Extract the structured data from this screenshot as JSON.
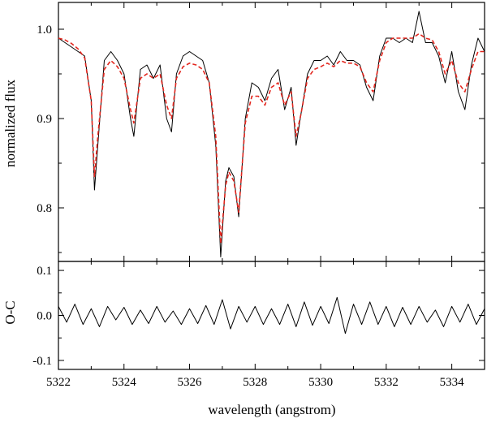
{
  "chart_data": [
    {
      "type": "line",
      "panel": "top",
      "xlabel": "",
      "ylabel": "normalized flux",
      "xlim": [
        5322,
        5335
      ],
      "ylim": [
        0.74,
        1.03
      ],
      "yticks": [
        0.8,
        0.9,
        1.0
      ],
      "ytick_labels": [
        "0.8",
        "0.9",
        "1.0"
      ],
      "xticks": [
        5322,
        5324,
        5326,
        5328,
        5330,
        5332,
        5334
      ],
      "grid": false,
      "series": [
        {
          "color": "#000000",
          "style": "solid",
          "role": "observed",
          "x": [
            5322.0,
            5322.2,
            5322.4,
            5322.6,
            5322.8,
            5323.0,
            5323.1,
            5323.2,
            5323.4,
            5323.6,
            5323.8,
            5324.0,
            5324.2,
            5324.3,
            5324.5,
            5324.7,
            5324.9,
            5325.1,
            5325.3,
            5325.45,
            5325.6,
            5325.8,
            5326.0,
            5326.2,
            5326.4,
            5326.6,
            5326.8,
            5326.95,
            5327.1,
            5327.2,
            5327.35,
            5327.5,
            5327.7,
            5327.9,
            5328.1,
            5328.3,
            5328.5,
            5328.7,
            5328.9,
            5329.1,
            5329.25,
            5329.4,
            5329.6,
            5329.8,
            5330.0,
            5330.2,
            5330.4,
            5330.6,
            5330.8,
            5331.0,
            5331.2,
            5331.4,
            5331.6,
            5331.8,
            5332.0,
            5332.2,
            5332.4,
            5332.6,
            5332.8,
            5333.0,
            5333.2,
            5333.4,
            5333.6,
            5333.8,
            5334.0,
            5334.2,
            5334.4,
            5334.6,
            5334.8,
            5335.0
          ],
          "y": [
            0.99,
            0.985,
            0.98,
            0.975,
            0.97,
            0.92,
            0.82,
            0.87,
            0.965,
            0.975,
            0.965,
            0.95,
            0.9,
            0.88,
            0.955,
            0.96,
            0.945,
            0.96,
            0.9,
            0.885,
            0.95,
            0.97,
            0.975,
            0.97,
            0.965,
            0.94,
            0.87,
            0.745,
            0.83,
            0.845,
            0.835,
            0.79,
            0.9,
            0.94,
            0.935,
            0.92,
            0.945,
            0.955,
            0.91,
            0.935,
            0.87,
            0.905,
            0.95,
            0.965,
            0.965,
            0.97,
            0.96,
            0.975,
            0.965,
            0.965,
            0.96,
            0.935,
            0.92,
            0.97,
            0.99,
            0.99,
            0.985,
            0.99,
            0.985,
            1.02,
            0.985,
            0.985,
            0.97,
            0.94,
            0.975,
            0.93,
            0.91,
            0.96,
            0.99,
            0.975
          ]
        },
        {
          "color": "#e3261e",
          "style": "dashed",
          "role": "model",
          "x": [
            5322.0,
            5322.2,
            5322.4,
            5322.6,
            5322.8,
            5323.0,
            5323.1,
            5323.2,
            5323.4,
            5323.6,
            5323.8,
            5324.0,
            5324.2,
            5324.3,
            5324.5,
            5324.7,
            5324.9,
            5325.1,
            5325.3,
            5325.45,
            5325.6,
            5325.8,
            5326.0,
            5326.2,
            5326.4,
            5326.6,
            5326.8,
            5326.95,
            5327.1,
            5327.2,
            5327.35,
            5327.5,
            5327.7,
            5327.9,
            5328.1,
            5328.3,
            5328.5,
            5328.7,
            5328.9,
            5329.1,
            5329.25,
            5329.4,
            5329.6,
            5329.8,
            5330.0,
            5330.2,
            5330.4,
            5330.6,
            5330.8,
            5331.0,
            5331.2,
            5331.4,
            5331.6,
            5331.8,
            5332.0,
            5332.2,
            5332.4,
            5332.6,
            5332.8,
            5333.0,
            5333.2,
            5333.4,
            5333.6,
            5333.8,
            5334.0,
            5334.2,
            5334.4,
            5334.6,
            5334.8,
            5335.0
          ],
          "y": [
            0.99,
            0.988,
            0.984,
            0.978,
            0.968,
            0.92,
            0.835,
            0.88,
            0.955,
            0.965,
            0.958,
            0.945,
            0.91,
            0.895,
            0.945,
            0.95,
            0.945,
            0.95,
            0.915,
            0.9,
            0.945,
            0.958,
            0.962,
            0.96,
            0.955,
            0.94,
            0.88,
            0.76,
            0.825,
            0.84,
            0.83,
            0.795,
            0.895,
            0.925,
            0.925,
            0.915,
            0.935,
            0.94,
            0.915,
            0.93,
            0.88,
            0.905,
            0.945,
            0.955,
            0.958,
            0.962,
            0.958,
            0.965,
            0.962,
            0.962,
            0.958,
            0.94,
            0.93,
            0.965,
            0.985,
            0.99,
            0.99,
            0.99,
            0.99,
            0.995,
            0.99,
            0.988,
            0.975,
            0.95,
            0.965,
            0.94,
            0.93,
            0.955,
            0.975,
            0.975
          ]
        }
      ]
    },
    {
      "type": "line",
      "panel": "bottom",
      "xlabel": "wavelength (angstrom)",
      "ylabel": "O-C",
      "xlim": [
        5322,
        5335
      ],
      "ylim": [
        -0.12,
        0.12
      ],
      "yticks": [
        -0.1,
        0.0,
        0.1
      ],
      "ytick_labels": [
        "-0.1",
        "0.0",
        "0.1"
      ],
      "xticks": [
        5322,
        5324,
        5326,
        5328,
        5330,
        5332,
        5334
      ],
      "xtick_labels": [
        "5322",
        "5324",
        "5326",
        "5328",
        "5330",
        "5332",
        "5334"
      ],
      "grid": false,
      "series": [
        {
          "color": "#000000",
          "style": "solid",
          "role": "residuals",
          "x": [
            5322.0,
            5322.25,
            5322.5,
            5322.75,
            5323.0,
            5323.25,
            5323.5,
            5323.75,
            5324.0,
            5324.25,
            5324.5,
            5324.75,
            5325.0,
            5325.25,
            5325.5,
            5325.75,
            5326.0,
            5326.25,
            5326.5,
            5326.75,
            5327.0,
            5327.25,
            5327.5,
            5327.75,
            5328.0,
            5328.25,
            5328.5,
            5328.75,
            5329.0,
            5329.25,
            5329.5,
            5329.75,
            5330.0,
            5330.25,
            5330.5,
            5330.75,
            5331.0,
            5331.25,
            5331.5,
            5331.75,
            5332.0,
            5332.25,
            5332.5,
            5332.75,
            5333.0,
            5333.25,
            5333.5,
            5333.75,
            5334.0,
            5334.25,
            5334.5,
            5334.75,
            5335.0
          ],
          "y": [
            0.02,
            -0.015,
            0.025,
            -0.02,
            0.015,
            -0.025,
            0.02,
            -0.01,
            0.018,
            -0.02,
            0.012,
            -0.018,
            0.02,
            -0.015,
            0.01,
            -0.02,
            0.015,
            -0.018,
            0.022,
            -0.02,
            0.035,
            -0.03,
            0.02,
            -0.015,
            0.02,
            -0.02,
            0.015,
            -0.02,
            0.025,
            -0.025,
            0.03,
            -0.022,
            0.02,
            -0.018,
            0.04,
            -0.04,
            0.025,
            -0.02,
            0.03,
            -0.02,
            0.02,
            -0.025,
            0.018,
            -0.02,
            0.02,
            -0.015,
            0.012,
            -0.025,
            0.02,
            -0.015,
            0.025,
            -0.02,
            0.015
          ]
        }
      ]
    }
  ]
}
